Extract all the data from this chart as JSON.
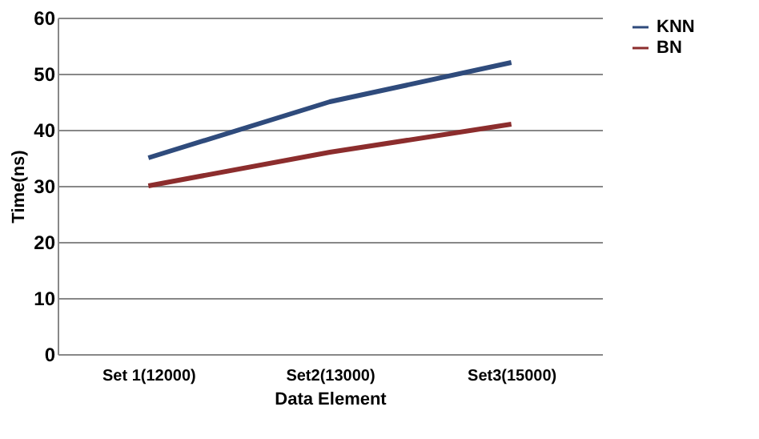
{
  "chart_data": {
    "type": "line",
    "xlabel": "Data Element",
    "ylabel": "Time(ns)",
    "categories": [
      "Set 1(12000)",
      "Set2(13000)",
      "Set3(15000)"
    ],
    "series": [
      {
        "name": "KNN",
        "color": "#2f4b7c",
        "values": [
          35,
          45,
          52
        ]
      },
      {
        "name": "BN",
        "color": "#8c2d2d",
        "values": [
          30,
          36,
          41
        ]
      }
    ],
    "ylim": [
      0,
      60
    ],
    "yticks": [
      0,
      10,
      20,
      30,
      40,
      50,
      60
    ],
    "grid": "y",
    "legend": "right",
    "marker": "none",
    "line_style": "solid"
  }
}
